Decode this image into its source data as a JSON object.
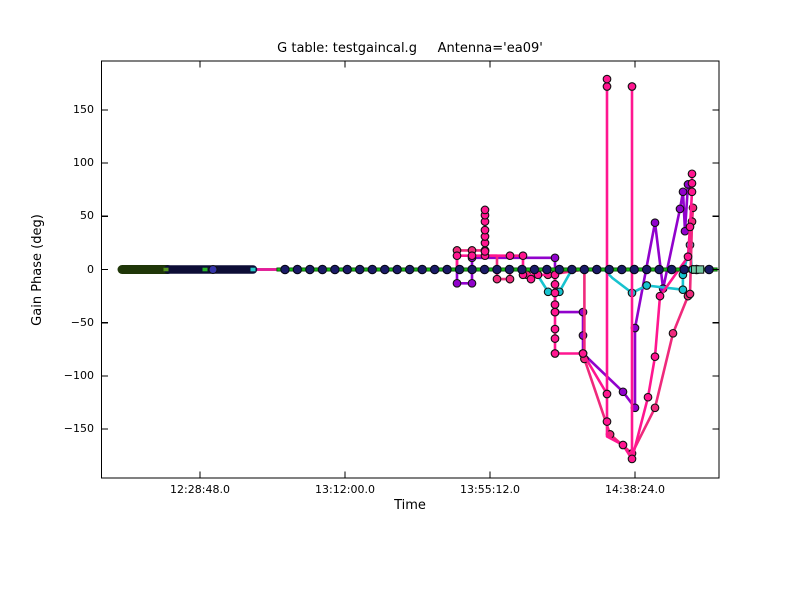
{
  "title": "G table: testgaincal.g     Antenna='ea09'",
  "chart_data": {
    "type": "line",
    "title": "G table: testgaincal.g     Antenna='ea09'",
    "xlabel": "Time",
    "ylabel": "Gain Phase (deg)",
    "grid": false,
    "legend": "none",
    "x_axis": {
      "unit": "seconds since 12:00:00",
      "min": -33,
      "max": 11006,
      "ticks": [
        {
          "t": 1728,
          "label": "12:28:48.0"
        },
        {
          "t": 4320,
          "label": "13:12:00.0"
        },
        {
          "t": 6912,
          "label": "13:55:12.0"
        },
        {
          "t": 9504,
          "label": "14:38:24.0"
        }
      ]
    },
    "y_axis": {
      "min": -196,
      "max": 196,
      "ticks": [
        {
          "v": 150,
          "label": "150"
        },
        {
          "v": 100,
          "label": "100"
        },
        {
          "v": 50,
          "label": "50"
        },
        {
          "v": 0,
          "label": "0"
        },
        {
          "v": -50,
          "label": "−50"
        },
        {
          "v": -100,
          "label": "−100"
        },
        {
          "v": -150,
          "label": "−150"
        }
      ]
    },
    "zero_line": {
      "blobs": [
        {
          "t1": 334,
          "t2": 1156,
          "color": "#1f3608",
          "width": 9
        },
        {
          "t1": 1156,
          "t2": 2675,
          "color": "#0d0d36",
          "width": 8.5
        }
      ],
      "cluster_times": [
        3247,
        3470,
        3693,
        3916,
        4139,
        4362,
        4585,
        4808,
        5031,
        5254,
        5477,
        5700,
        5923,
        6146,
        6369,
        6592,
        6815,
        7038,
        7261,
        7484,
        7707,
        7930,
        8153,
        8376,
        8599,
        8822,
        9045,
        9268,
        9491,
        9714,
        9937,
        10160,
        10383,
        10606,
        10829
      ],
      "dash_offset_s": 100,
      "navy_color": "#1a1a66",
      "dash_color": "#0fbf0f",
      "extras": [
        {
          "type": "dash",
          "t": 1120,
          "color": "#55951e"
        },
        {
          "type": "dash",
          "t": 1817,
          "color": "#27b527"
        },
        {
          "type": "dash",
          "t": 2675,
          "color": "#25c8c8"
        },
        {
          "type": "circle",
          "t": 1960,
          "color": "#3434a8"
        },
        {
          "type": "circle",
          "t": 10540,
          "color": "#25c8c8"
        },
        {
          "type": "square",
          "t": 10580,
          "color": "#72c8a2"
        },
        {
          "type": "square",
          "t": 10666,
          "color": "#72c8a2"
        }
      ]
    },
    "series": [
      {
        "id": "navy_flat",
        "color": "#15155c",
        "line_width": 2.4,
        "markers": "none",
        "marker_r": 0,
        "path": [
          [
            1156,
            0
          ],
          [
            10845,
            0
          ]
        ]
      },
      {
        "id": "purple",
        "color": "#9102cc",
        "line_width": 2.6,
        "marker_r": 3.8,
        "path": [
          [
            1156,
            0
          ],
          [
            6322,
            0
          ],
          [
            6322,
            -13
          ],
          [
            6590,
            -13
          ],
          [
            6590,
            11
          ],
          [
            8074,
            11
          ],
          [
            8074,
            -40
          ],
          [
            8575,
            -40
          ],
          [
            8575,
            -79
          ],
          [
            9290,
            -115
          ],
          [
            9504,
            -130
          ],
          [
            9504,
            -55
          ],
          [
            9862,
            44
          ],
          [
            10006,
            -18
          ],
          [
            10309,
            57
          ],
          [
            10362,
            73
          ],
          [
            10398,
            36
          ],
          [
            10452,
            80
          ]
        ],
        "markers": [
          [
            6322,
            -13
          ],
          [
            6590,
            -13
          ],
          [
            6590,
            11
          ],
          [
            8074,
            11
          ],
          [
            8074,
            -40
          ],
          [
            8575,
            -40
          ],
          [
            8575,
            -62
          ],
          [
            8575,
            -79
          ],
          [
            9290,
            -115
          ],
          [
            9504,
            -130
          ],
          [
            9504,
            -55
          ],
          [
            9862,
            44
          ],
          [
            10006,
            -18
          ],
          [
            10309,
            57
          ],
          [
            10362,
            73
          ],
          [
            10398,
            36
          ],
          [
            10452,
            80
          ]
        ]
      },
      {
        "id": "cyan",
        "color": "#17c3cf",
        "line_width": 2.6,
        "marker_r": 3.8,
        "path": [
          [
            2675,
            0
          ],
          [
            7700,
            0
          ],
          [
            7950,
            -21
          ],
          [
            8153,
            -21
          ],
          [
            8376,
            0
          ],
          [
            8950,
            0
          ],
          [
            9100,
            -8
          ],
          [
            9451,
            -22
          ],
          [
            9714,
            -15
          ],
          [
            10360,
            -19
          ],
          [
            10360,
            -5
          ],
          [
            10488,
            23
          ],
          [
            10520,
            0
          ]
        ],
        "markers": [
          [
            7950,
            -21
          ],
          [
            8153,
            -21
          ],
          [
            9451,
            -22
          ],
          [
            9714,
            -15
          ],
          [
            10360,
            -19
          ],
          [
            10360,
            -5
          ],
          [
            10488,
            23
          ],
          [
            10520,
            0
          ]
        ]
      },
      {
        "id": "pink2",
        "color": "#ef2a7c",
        "line_width": 2.6,
        "marker_r": 3.8,
        "path": [
          [
            2711,
            0
          ],
          [
            6322,
            0
          ],
          [
            6322,
            18
          ],
          [
            6823,
            18
          ],
          [
            6823,
            13
          ],
          [
            7038,
            13
          ],
          [
            7038,
            -9
          ],
          [
            7270,
            -9
          ],
          [
            7270,
            0
          ],
          [
            7574,
            0
          ],
          [
            7574,
            -5
          ],
          [
            7949,
            -5
          ],
          [
            8599,
            0
          ],
          [
            8599,
            -84
          ],
          [
            9058,
            -155
          ],
          [
            9451,
            -173
          ],
          [
            9862,
            -130
          ],
          [
            10184,
            -60
          ],
          [
            10452,
            -25
          ],
          [
            10488,
            -23
          ],
          [
            10523,
            45
          ],
          [
            10541,
            58
          ]
        ],
        "markers": [
          [
            6322,
            18
          ],
          [
            6590,
            18
          ],
          [
            6823,
            18
          ],
          [
            7038,
            -9
          ],
          [
            7270,
            -9
          ],
          [
            7574,
            -5
          ],
          [
            7949,
            -5
          ],
          [
            8599,
            -84
          ],
          [
            9058,
            -155
          ],
          [
            9451,
            -173
          ],
          [
            9862,
            -130
          ],
          [
            10184,
            -60
          ],
          [
            10452,
            -25
          ],
          [
            10488,
            -23
          ],
          [
            10523,
            45
          ],
          [
            10541,
            58
          ]
        ]
      },
      {
        "id": "pink1",
        "color": "#ff1690",
        "line_width": 2.6,
        "marker_r": 3.8,
        "path": [
          [
            2711,
            0
          ],
          [
            6322,
            0
          ],
          [
            6322,
            13
          ],
          [
            6823,
            13
          ],
          [
            6823,
            56
          ],
          [
            6823,
            13
          ],
          [
            7502,
            13
          ],
          [
            7502,
            -5
          ],
          [
            8074,
            -5
          ],
          [
            8074,
            -79
          ],
          [
            8575,
            -79
          ],
          [
            9004,
            -117
          ],
          [
            9004,
            179
          ],
          [
            9004,
            -157
          ],
          [
            9290,
            -165
          ],
          [
            9451,
            -178
          ],
          [
            9451,
            172
          ],
          [
            9451,
            -178
          ],
          [
            9737,
            -120
          ],
          [
            9862,
            -82
          ],
          [
            9951,
            -25
          ],
          [
            10452,
            12
          ],
          [
            10488,
            40
          ],
          [
            10523,
            73
          ],
          [
            10523,
            90
          ]
        ],
        "markers": [
          [
            6322,
            13
          ],
          [
            6590,
            13
          ],
          [
            6823,
            13
          ],
          [
            6823,
            17
          ],
          [
            6823,
            25
          ],
          [
            6823,
            31
          ],
          [
            6823,
            37
          ],
          [
            6823,
            45
          ],
          [
            6823,
            51
          ],
          [
            6823,
            56
          ],
          [
            7270,
            13
          ],
          [
            7502,
            13
          ],
          [
            7502,
            -5
          ],
          [
            7645,
            -9
          ],
          [
            7770,
            -5
          ],
          [
            8074,
            -5
          ],
          [
            8074,
            -14
          ],
          [
            8074,
            -22
          ],
          [
            8074,
            -33
          ],
          [
            8074,
            -40
          ],
          [
            8074,
            -56
          ],
          [
            8074,
            -65
          ],
          [
            8074,
            -79
          ],
          [
            8575,
            -79
          ],
          [
            9004,
            -117
          ],
          [
            9004,
            -143
          ],
          [
            9004,
            172
          ],
          [
            9004,
            179
          ],
          [
            9451,
            172
          ],
          [
            9451,
            -178
          ],
          [
            9290,
            -165
          ],
          [
            9737,
            -120
          ],
          [
            9862,
            -82
          ],
          [
            9951,
            -25
          ],
          [
            10452,
            12
          ],
          [
            10488,
            40
          ],
          [
            10523,
            73
          ],
          [
            10523,
            81
          ],
          [
            10523,
            90
          ]
        ]
      },
      {
        "id": "magenta_flat",
        "color": "#e61aa0",
        "line_width": 1.4,
        "markers": "none",
        "marker_r": 0,
        "path": [
          [
            2675,
            0
          ],
          [
            10845,
            0
          ]
        ]
      }
    ]
  }
}
